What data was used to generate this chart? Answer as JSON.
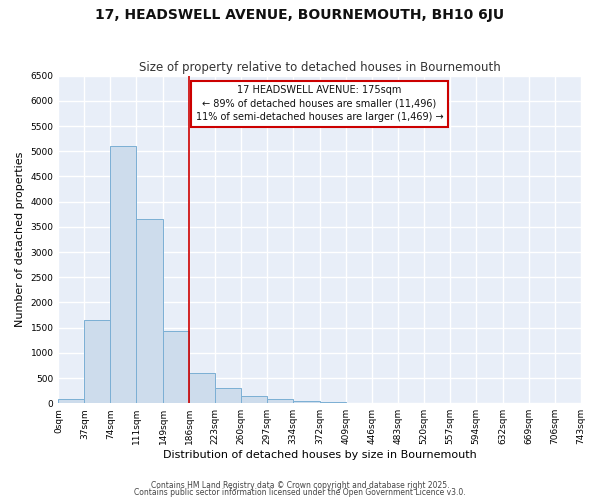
{
  "title1": "17, HEADSWELL AVENUE, BOURNEMOUTH, BH10 6JU",
  "title2": "Size of property relative to detached houses in Bournemouth",
  "xlabel": "Distribution of detached houses by size in Bournemouth",
  "ylabel": "Number of detached properties",
  "bar_values": [
    75,
    1650,
    5100,
    3650,
    1430,
    600,
    300,
    140,
    75,
    50,
    15,
    0,
    0,
    0,
    0,
    0,
    0,
    0,
    0,
    0
  ],
  "bin_edges": [
    0,
    37,
    74,
    111,
    149,
    186,
    223,
    260,
    297,
    334,
    372,
    409,
    446,
    483,
    520,
    557,
    594,
    632,
    669,
    706,
    743
  ],
  "tick_labels": [
    "0sqm",
    "37sqm",
    "74sqm",
    "111sqm",
    "149sqm",
    "186sqm",
    "223sqm",
    "260sqm",
    "297sqm",
    "334sqm",
    "372sqm",
    "409sqm",
    "446sqm",
    "483sqm",
    "520sqm",
    "557sqm",
    "594sqm",
    "632sqm",
    "669sqm",
    "706sqm",
    "743sqm"
  ],
  "bar_color": "#cddcec",
  "bar_edgecolor": "#7bafd4",
  "vline_x": 186,
  "vline_color": "#cc0000",
  "annotation_title": "17 HEADSWELL AVENUE: 175sqm",
  "annotation_line2": "← 89% of detached houses are smaller (11,496)",
  "annotation_line3": "11% of semi-detached houses are larger (1,469) →",
  "annotation_box_color": "#cc0000",
  "ylim": [
    0,
    6500
  ],
  "yticks": [
    0,
    500,
    1000,
    1500,
    2000,
    2500,
    3000,
    3500,
    4000,
    4500,
    5000,
    5500,
    6000,
    6500
  ],
  "bg_color": "#ffffff",
  "plot_bg_color": "#e8eef8",
  "grid_color": "#ffffff",
  "footer1": "Contains HM Land Registry data © Crown copyright and database right 2025.",
  "footer2": "Contains public sector information licensed under the Open Government Licence v3.0.",
  "title1_fontsize": 10,
  "title2_fontsize": 8.5,
  "tick_fontsize": 6.5,
  "ylabel_fontsize": 8,
  "xlabel_fontsize": 8,
  "footer_fontsize": 5.5
}
